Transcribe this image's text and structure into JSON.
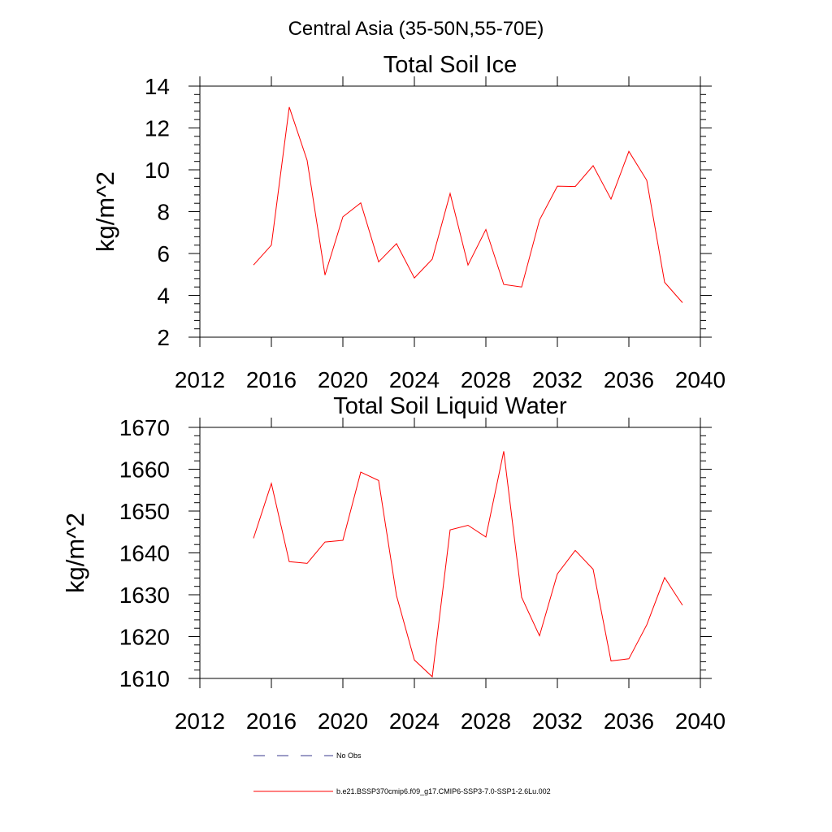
{
  "supertitle": "Central Asia (35-50N,55-70E)",
  "colors": {
    "model_line": "#ff0000",
    "obs_line": "#3a3a8c",
    "axis": "#000000"
  },
  "legend": {
    "items": [
      {
        "label": "No Obs",
        "style": "dashed",
        "color": "#3a3a8c"
      },
      {
        "label": "b.e21.BSSP370cmip6.f09_g17.CMIP6-SSP3-7.0-SSP1-2.6Lu.002",
        "style": "solid",
        "color": "#ff0000"
      }
    ]
  },
  "chart_data": [
    {
      "type": "line",
      "title": "Total Soil Ice",
      "ylabel": "kg/m^2",
      "xlabel": "",
      "xlim": [
        2012,
        2040
      ],
      "ylim": [
        2,
        14
      ],
      "xticks": [
        2012,
        2016,
        2020,
        2024,
        2028,
        2032,
        2036,
        2040
      ],
      "yticks": [
        2,
        4,
        6,
        8,
        10,
        12,
        14
      ],
      "grid": false,
      "x": [
        2015,
        2016,
        2017,
        2018,
        2019,
        2020,
        2021,
        2022,
        2023,
        2024,
        2025,
        2026,
        2027,
        2028,
        2029,
        2030,
        2031,
        2032,
        2033,
        2034,
        2035,
        2036,
        2037,
        2038,
        2039
      ],
      "series": [
        {
          "name": "b.e21.BSSP370cmip6.f09_g17.CMIP6-SSP3-7.0-SSP1-2.6Lu.002",
          "values": [
            5.45,
            6.4,
            13.0,
            10.45,
            4.97,
            7.75,
            8.42,
            5.6,
            6.47,
            4.83,
            5.73,
            8.87,
            5.45,
            7.15,
            4.52,
            4.4,
            7.6,
            9.22,
            9.2,
            10.2,
            8.6,
            10.88,
            9.5,
            4.62,
            3.65
          ]
        }
      ]
    },
    {
      "type": "line",
      "title": "Total Soil Liquid Water",
      "ylabel": "kg/m^2",
      "xlabel": "",
      "xlim": [
        2012,
        2040
      ],
      "ylim": [
        1610,
        1670
      ],
      "xticks": [
        2012,
        2016,
        2020,
        2024,
        2028,
        2032,
        2036,
        2040
      ],
      "yticks": [
        1610,
        1620,
        1630,
        1640,
        1650,
        1660,
        1670
      ],
      "grid": false,
      "x": [
        2015,
        2016,
        2017,
        2018,
        2019,
        2020,
        2021,
        2022,
        2023,
        2024,
        2025,
        2026,
        2027,
        2028,
        2029,
        2030,
        2031,
        2032,
        2033,
        2034,
        2035,
        2036,
        2037,
        2038,
        2039
      ],
      "series": [
        {
          "name": "b.e21.BSSP370cmip6.f09_g17.CMIP6-SSP3-7.0-SSP1-2.6Lu.002",
          "values": [
            1643.5,
            1656.6,
            1637.9,
            1637.5,
            1642.6,
            1643.0,
            1659.3,
            1657.3,
            1629.8,
            1614.4,
            1610.4,
            1645.5,
            1646.6,
            1643.8,
            1664.3,
            1629.4,
            1620.2,
            1635.0,
            1640.6,
            1636.1,
            1614.2,
            1614.7,
            1622.8,
            1634.1,
            1627.5
          ]
        }
      ]
    }
  ]
}
